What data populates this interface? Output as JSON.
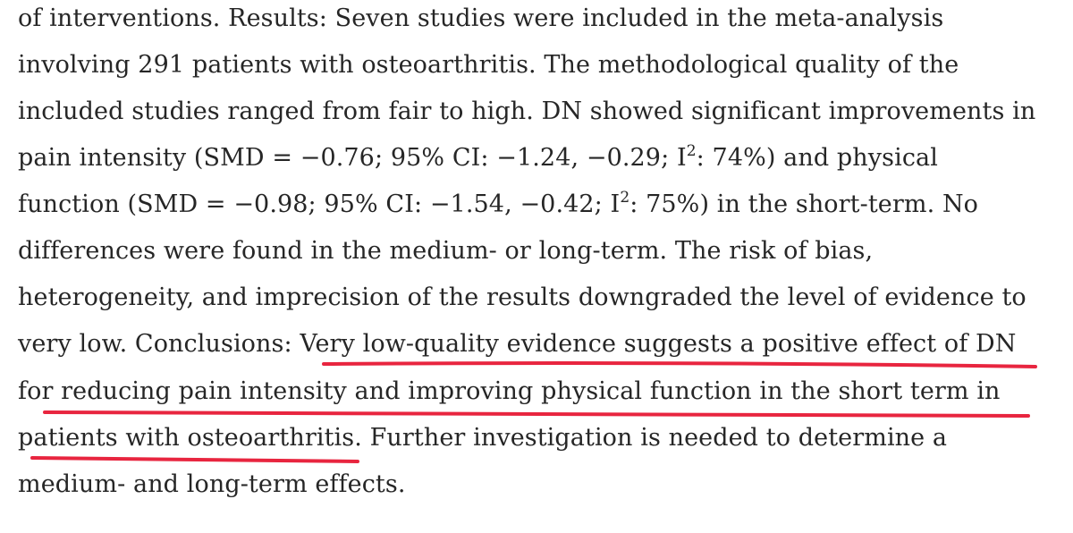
{
  "lines": [
    {
      "text": "of interventions. Results: Seven studies were included in the meta-analysis"
    },
    {
      "text": "involving 291 patients with osteoarthritis. The methodological quality of the"
    },
    {
      "text": "included studies ranged from fair to high. DN showed significant improvements in"
    },
    {
      "pre": "pain intensity (SMD = −0.76; 95% CI: −1.24, −0.29; I",
      "sup": "2",
      "post": ": 74%) and physical"
    },
    {
      "pre": "function (SMD = −0.98; 95% CI: −1.54, −0.42; I",
      "sup": "2",
      "post": ": 75%) in the short-term. No"
    },
    {
      "text": "differences were found in the medium- or long-term. The risk of bias,"
    },
    {
      "text": "heterogeneity, and imprecision of the results downgraded the level of evidence to"
    },
    {
      "text": "very low. Conclusions: Very low-quality evidence suggests a positive effect of DN"
    },
    {
      "text": "for reducing pain intensity and improving physical function in the short term in"
    },
    {
      "text": "patients with osteoarthritis. Further investigation is needed to determine a"
    },
    {
      "text": "medium- and long-term effects."
    }
  ],
  "highlight_color": "#e8253f"
}
